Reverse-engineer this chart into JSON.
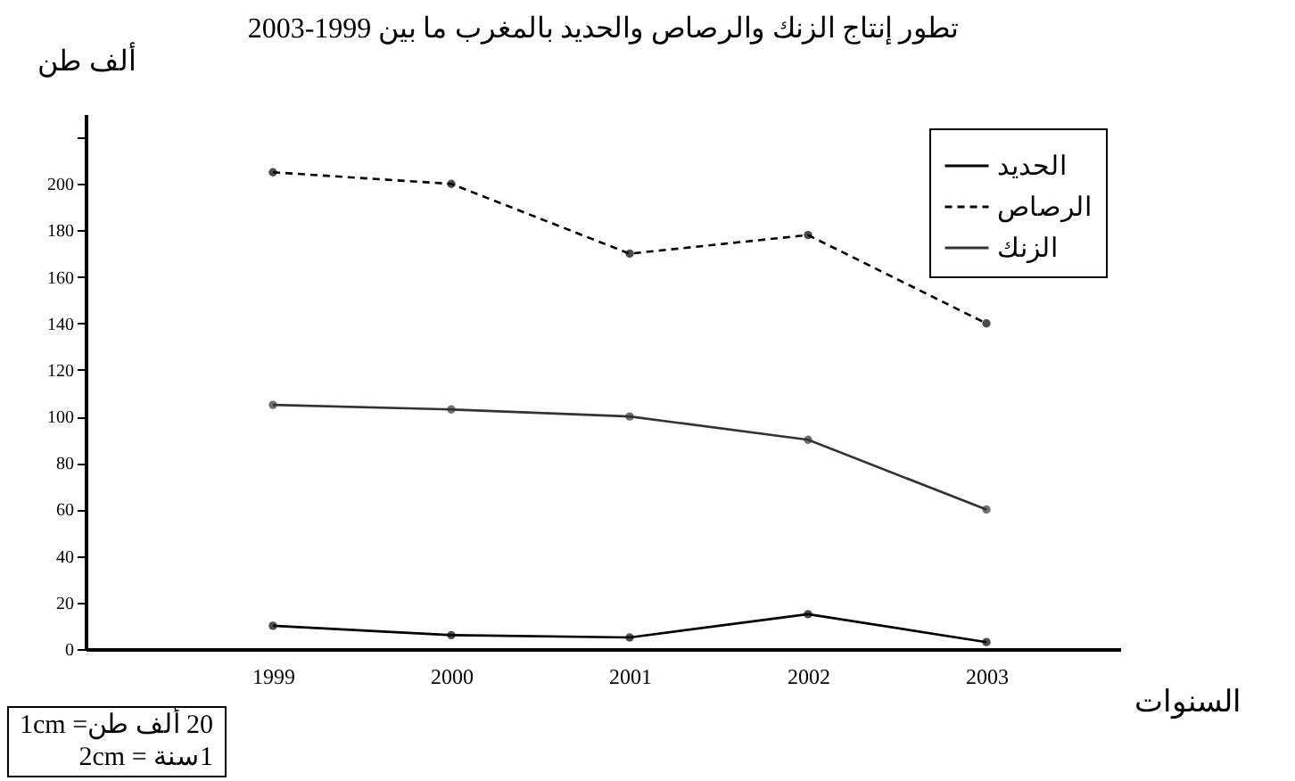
{
  "chart_data": {
    "type": "line",
    "title": "تطور إنتاج الزنك والرصاص والحديد بالمغرب ما بين 1999-2003",
    "xlabel": "السنوات",
    "ylabel": "ألف طن",
    "categories": [
      "1999",
      "2000",
      "2001",
      "2002",
      "2003"
    ],
    "series": [
      {
        "name": "الحديد",
        "color": "#000000",
        "line_style": "solid",
        "values": [
          10,
          6,
          5,
          15,
          3
        ]
      },
      {
        "name": "الرصاص",
        "color": "#000000",
        "line_style": "dashed",
        "values": [
          205,
          200,
          170,
          178,
          140
        ]
      },
      {
        "name": "الزنك",
        "color": "#333333",
        "line_style": "solid",
        "values": [
          105,
          103,
          100,
          90,
          60
        ]
      }
    ],
    "ylim": [
      0,
      230
    ],
    "yticks": [
      {
        "value": 0,
        "label": "0"
      },
      20,
      40,
      60,
      80,
      100,
      120,
      140,
      160,
      180,
      200,
      {
        "value": 220,
        "label": null
      }
    ],
    "grid": false,
    "legend": "top right",
    "marker": "circle",
    "annotations": [
      "20 ألف طن= 1cm",
      "1سنة = 2cm"
    ]
  }
}
